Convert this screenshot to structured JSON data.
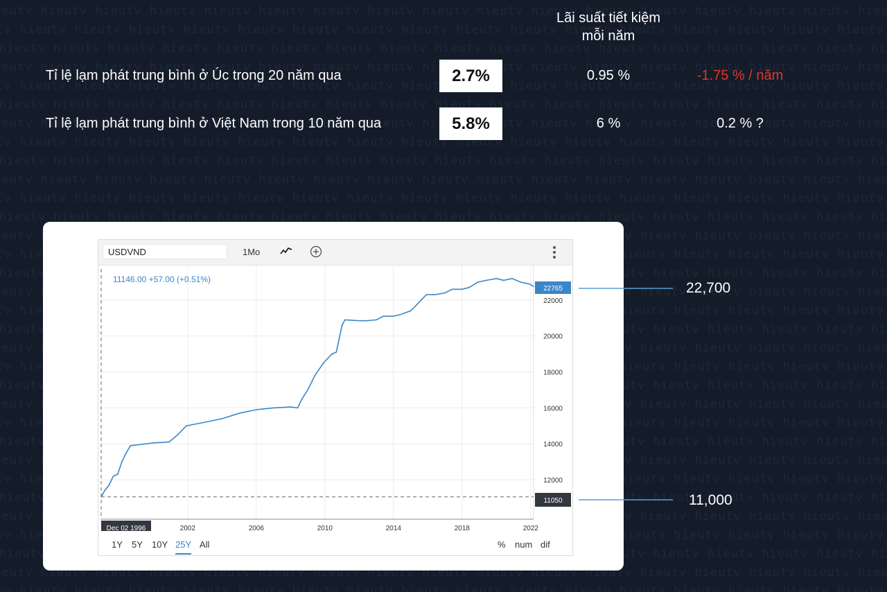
{
  "watermark": {
    "text": "hieutv"
  },
  "heading": {
    "line1": "Lãi suất tiết kiệm",
    "line2": "mỗi năm"
  },
  "rows": [
    {
      "label": "Tỉ lệ lạm phát trung bình ở Úc trong 20 năm qua",
      "inflation": "2.7%",
      "savings_rate": "0.95 %",
      "real_return": "-1.75 % / năm",
      "real_color": "#e3342b"
    },
    {
      "label": "Tỉ lệ lạm phát trung bình ở Việt Nam trong 10 năm qua",
      "inflation": "5.8%",
      "savings_rate": "6 %",
      "real_return": "0.2 % ?",
      "real_color": "#ffffff"
    }
  ],
  "widget": {
    "symbol": "USDVND",
    "interval": "1Mo",
    "chart_type_icon": "line-chart-icon",
    "compare_icon": "plus-circle-icon",
    "menu_icon": "kebab-menu-icon",
    "quote": "11146.00  +57.00 (+0.51%)",
    "current_price_label": "22765",
    "start_price_label": "11050",
    "start_date_label": "Dec 02 1996",
    "ranges": [
      "1Y",
      "5Y",
      "10Y",
      "25Y",
      "All"
    ],
    "active_range": "25Y",
    "units": [
      "%",
      "num",
      "dif"
    ]
  },
  "annotations": {
    "high": "22,700",
    "low": "11,000"
  },
  "colors": {
    "line": "#3a86c8",
    "accent": "#3a86c8",
    "background": "#141c2a",
    "negative": "#e3342b"
  },
  "chart_data": {
    "type": "line",
    "title": "",
    "xlabel": "",
    "ylabel": "",
    "series": [
      {
        "name": "USDVND",
        "x": [
          "1996-12",
          "1997-03",
          "1997-06",
          "1997-09",
          "1997-12",
          "1998-03",
          "1998-06",
          "1998-09",
          "1999-03",
          "2000-01",
          "2000-12",
          "2001-06",
          "2001-12",
          "2003-01",
          "2004-01",
          "2005-01",
          "2006-01",
          "2007-01",
          "2008-01",
          "2008-06",
          "2008-09",
          "2009-01",
          "2009-06",
          "2009-12",
          "2010-06",
          "2010-09",
          "2011-01",
          "2011-03",
          "2012-01",
          "2012-06",
          "2013-01",
          "2013-06",
          "2014-01",
          "2014-06",
          "2015-01",
          "2015-06",
          "2015-12",
          "2016-06",
          "2017-01",
          "2017-06",
          "2018-01",
          "2018-06",
          "2018-12",
          "2019-06",
          "2020-01",
          "2020-06",
          "2020-12",
          "2021-06",
          "2021-12",
          "2022-03"
        ],
        "values": [
          11050,
          11400,
          11700,
          12200,
          12300,
          13000,
          13500,
          13900,
          13950,
          14050,
          14100,
          14500,
          15000,
          15200,
          15400,
          15700,
          15900,
          16000,
          16050,
          16000,
          16500,
          17000,
          17800,
          18500,
          19000,
          19100,
          20600,
          20900,
          20850,
          20850,
          20900,
          21100,
          21100,
          21200,
          21400,
          21800,
          22300,
          22300,
          22400,
          22600,
          22600,
          22700,
          23000,
          23100,
          23200,
          23100,
          23200,
          23000,
          22900,
          22765
        ]
      }
    ],
    "ylim": [
      11000,
      23500
    ],
    "yticks": [
      12000,
      14000,
      16000,
      18000,
      20000,
      22000
    ],
    "xticks": [
      2002,
      2006,
      2010,
      2014,
      2018,
      2022
    ],
    "reference_line": 11050,
    "grid": true,
    "legend": "none"
  }
}
